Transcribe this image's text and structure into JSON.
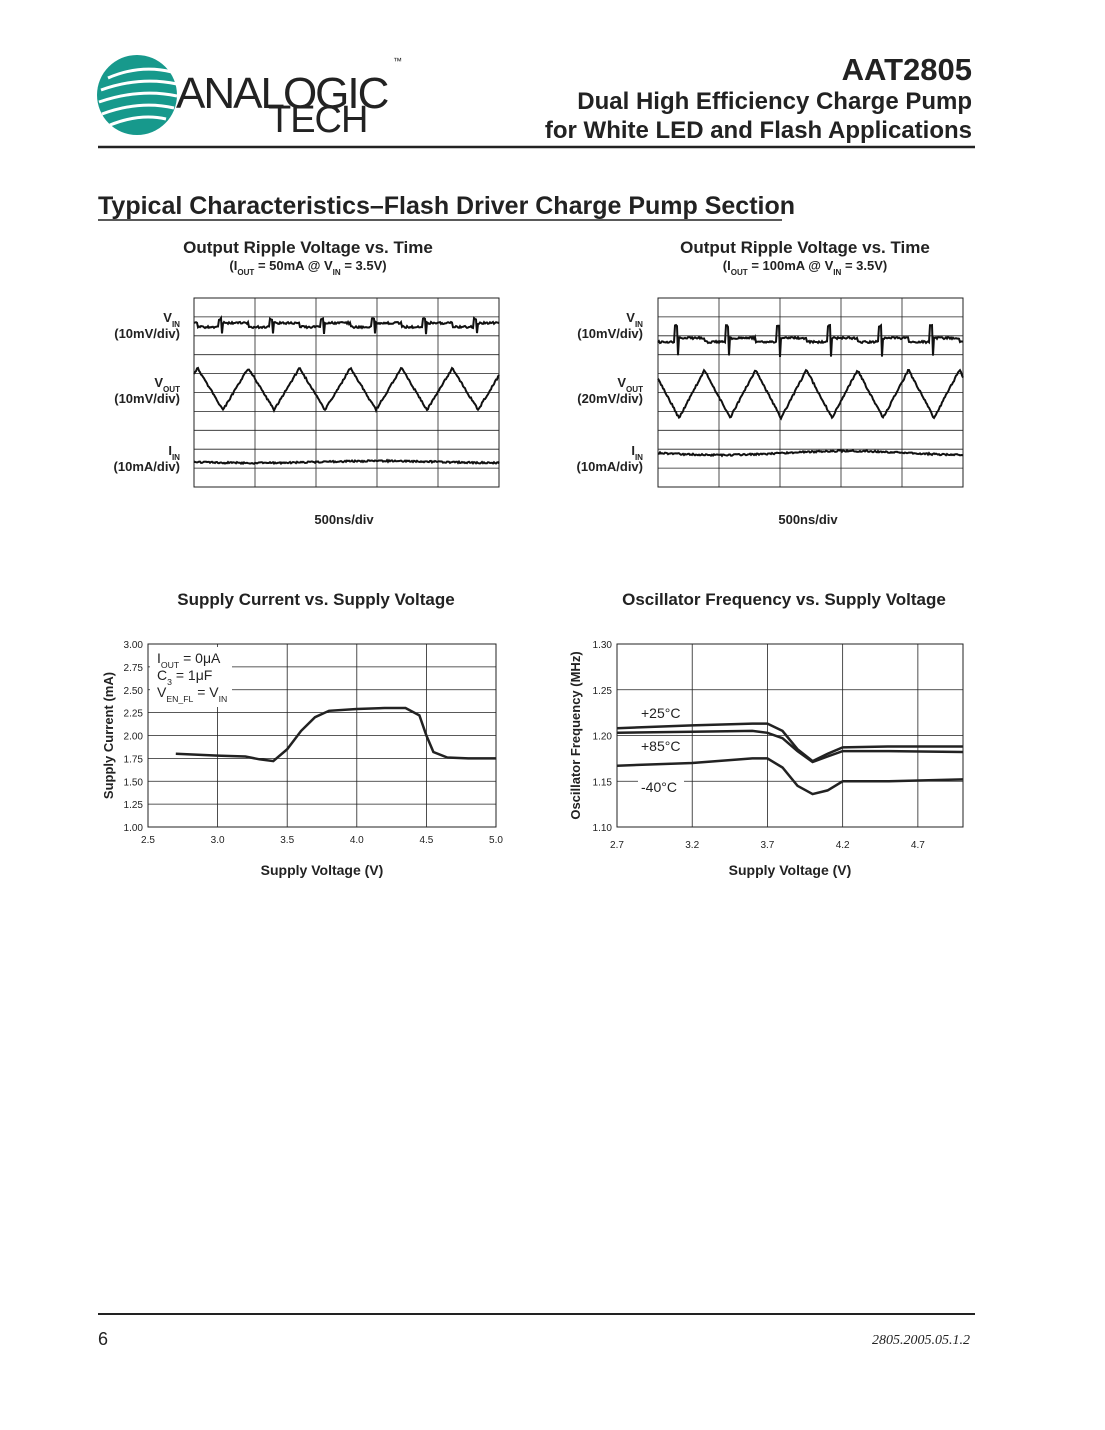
{
  "header": {
    "logo_top": "ANALOGIC",
    "logo_bottom": "TECH",
    "logo_mark": "™",
    "part_number": "AAT2805",
    "title_line1": "Dual High Efficiency Charge Pump",
    "title_line2": "for White LED and Flash Applications"
  },
  "section_title": "Typical Characteristics–Flash Driver Charge Pump Section",
  "scope_plots": [
    {
      "title": "Output Ripple Voltage vs. Time",
      "subtitle": [
        "(I",
        "OUT",
        " = 50mA @ V",
        "IN",
        " = 3.5V)"
      ],
      "traces": [
        {
          "label": [
            "V",
            "IN"
          ],
          "scale": "(10mV/div)"
        },
        {
          "label": [
            "V",
            "OUT"
          ],
          "scale": "(10mV/div)"
        },
        {
          "label": [
            "I",
            "IN"
          ],
          "scale": "(10mA/div)"
        }
      ],
      "time_scale": "500ns/div"
    },
    {
      "title": "Output Ripple Voltage vs. Time",
      "subtitle": [
        "(I",
        "OUT",
        " = 100mA @ V",
        "IN",
        " = 3.5V)"
      ],
      "traces": [
        {
          "label": [
            "V",
            "IN"
          ],
          "scale": "(10mV/div)"
        },
        {
          "label": [
            "V",
            "OUT"
          ],
          "scale": "(20mV/div)"
        },
        {
          "label": [
            "I",
            "IN"
          ],
          "scale": "(10mA/div)"
        }
      ],
      "time_scale": "500ns/div"
    }
  ],
  "chart_data": [
    {
      "type": "line",
      "title": "Supply Current vs. Supply Voltage",
      "x_label": "Supply Voltage (V)",
      "y_label": "Supply Current (mA)",
      "xlim": [
        2.5,
        5.0
      ],
      "xticks": [
        2.5,
        {
          "value": 3,
          "label": "3.0"
        },
        3.5,
        {
          "value": 4,
          "label": "4.0"
        },
        4.5,
        {
          "value": 5,
          "label": "5.0"
        }
      ],
      "ylim": [
        1.0,
        3.0
      ],
      "yticks": [
        {
          "value": 1,
          "label": "1.00"
        },
        1.25,
        {
          "value": 1.5,
          "label": "1.50"
        },
        1.75,
        {
          "value": 2,
          "label": "2.00"
        },
        2.25,
        {
          "value": 2.5,
          "label": "2.50"
        },
        2.75,
        {
          "value": 3,
          "label": "3.00"
        }
      ],
      "grid": true,
      "annotation": [
        [
          "I",
          "OUT",
          " = 0μA"
        ],
        [
          "C",
          "3",
          " = 1μF"
        ],
        [
          "V",
          "EN_FL",
          " = V",
          "IN"
        ]
      ],
      "x": [
        2.7,
        3.0,
        3.2,
        3.3,
        3.4,
        3.5,
        3.6,
        3.7,
        3.8,
        4.0,
        4.2,
        4.35,
        4.45,
        4.5,
        4.55,
        4.65,
        4.8,
        5.0
      ],
      "series": [
        {
          "color": "#222222",
          "values": [
            1.8,
            1.78,
            1.77,
            1.74,
            1.72,
            1.85,
            2.05,
            2.2,
            2.27,
            2.29,
            2.3,
            2.3,
            2.22,
            2.0,
            1.82,
            1.76,
            1.75,
            1.75
          ]
        }
      ]
    },
    {
      "type": "line",
      "title": "Oscillator Frequency vs. Supply Voltage",
      "x_label": "Supply Voltage (V)",
      "y_label": "Oscillator Frequency (MHz)",
      "xlim": [
        2.7,
        5.0
      ],
      "xticks": [
        2.7,
        3.2,
        3.7,
        4.2,
        4.7
      ],
      "ylim": [
        1.1,
        1.3
      ],
      "yticks": [
        {
          "value": 1.1,
          "label": "1.10"
        },
        1.15,
        {
          "value": 1.2,
          "label": "1.20"
        },
        1.25,
        {
          "value": 1.3,
          "label": "1.30"
        }
      ],
      "grid": true,
      "x": [
        2.7,
        3.2,
        3.6,
        3.7,
        3.8,
        3.9,
        4.0,
        4.1,
        4.2,
        4.5,
        5.0
      ],
      "series": [
        {
          "name": "+25°C",
          "color": "#222222",
          "values": [
            1.208,
            1.211,
            1.213,
            1.213,
            1.205,
            1.185,
            1.172,
            1.18,
            1.187,
            1.188,
            1.188
          ]
        },
        {
          "name": "+85°C",
          "color": "#222222",
          "values": [
            1.203,
            1.204,
            1.205,
            1.203,
            1.197,
            1.183,
            1.171,
            1.177,
            1.183,
            1.183,
            1.182
          ]
        },
        {
          "name": "-40°C",
          "color": "#222222",
          "values": [
            1.167,
            1.17,
            1.175,
            1.175,
            1.165,
            1.145,
            1.136,
            1.14,
            1.15,
            1.15,
            1.152
          ]
        }
      ]
    }
  ],
  "footer": {
    "page_number": "6",
    "doc_code": "2805.2005.05.1.2"
  }
}
